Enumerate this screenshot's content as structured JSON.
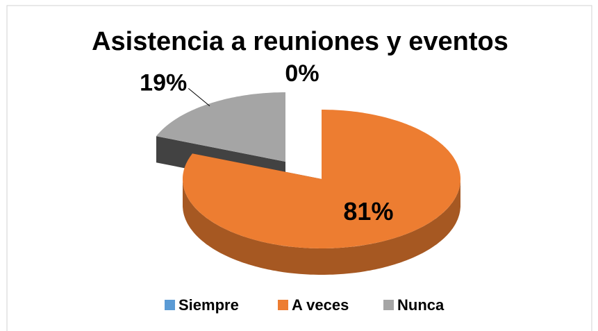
{
  "chart_data": {
    "type": "pie",
    "title": "Asistencia a reuniones y eventos",
    "categories": [
      "Siempre",
      "A veces",
      "Nunca"
    ],
    "values": [
      0,
      81,
      19
    ],
    "value_labels": [
      "0%",
      "81%",
      "19%"
    ],
    "colors": [
      "#5b9bd5",
      "#ed7d31",
      "#a5a5a5"
    ],
    "legend": "bottom"
  }
}
